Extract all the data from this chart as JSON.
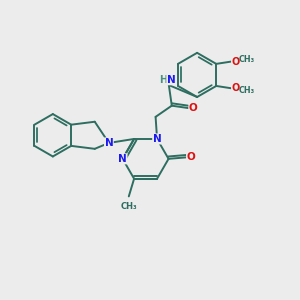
{
  "bg_color": "#ececec",
  "bond_color": "#2d6e60",
  "n_color": "#1a1aee",
  "o_color": "#dd1111",
  "h_color": "#4a9080",
  "lw": 1.4,
  "figsize": [
    3.0,
    3.0
  ],
  "dpi": 100,
  "xlim": [
    0,
    10
  ],
  "ylim": [
    0,
    10
  ]
}
